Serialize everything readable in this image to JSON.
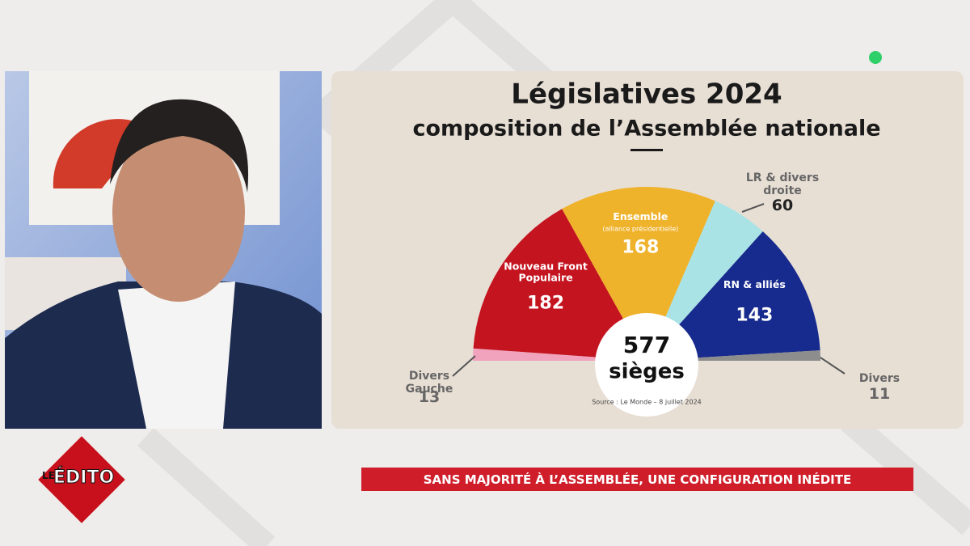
{
  "chart_data": {
    "type": "hemicycle",
    "title": "Législatives 2024",
    "subtitle": "composition de l’Assemblée nationale",
    "categories": [
      "Divers Gauche",
      "Nouveau Front Populaire",
      "Ensemble",
      "LR & divers droite",
      "RN & alliés",
      "Divers"
    ],
    "values": [
      13,
      182,
      168,
      60,
      143,
      11
    ],
    "colors": [
      "#f1a3bd",
      "#c4141f",
      "#efb22b",
      "#a9e3e6",
      "#172a8e",
      "#8d8d8d"
    ],
    "annotation": "(alliance présidentielle)",
    "total": 577,
    "total_label": "sièges",
    "source": "Source : Le Monde – 8 juillet 2024"
  },
  "banner": "SANS MAJORITÉ À L’ASSEMBLÉE, UNE CONFIGURATION INÉDITE",
  "logo": {
    "small": "LE",
    "main": "ÉDITO"
  }
}
